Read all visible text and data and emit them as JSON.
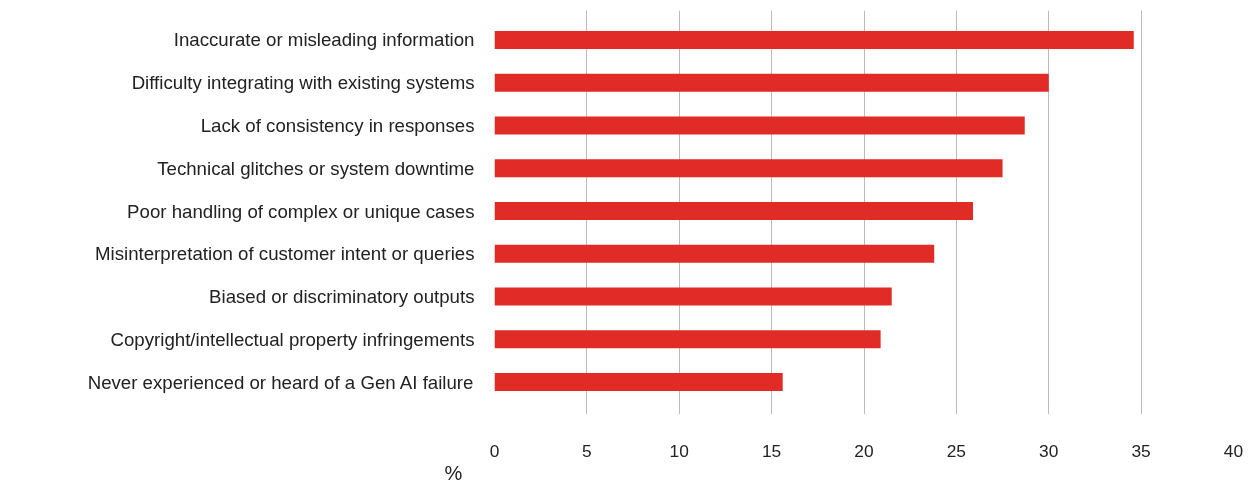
{
  "chart_data": {
    "type": "bar",
    "orientation": "horizontal",
    "xlabel": "%",
    "categories": [
      "Inaccurate or misleading information",
      "Difficulty integrating with existing systems",
      "Lack of consistency in responses",
      "Technical glitches or system downtime",
      "Poor handling of complex or unique cases",
      "Misinterpretation of customer intent or queries",
      "Biased or discriminatory outputs",
      "Copyright/intellectual property infringements",
      "Never experienced or heard of a Gen AI failure"
    ],
    "values": [
      34.6,
      30.0,
      28.7,
      27.5,
      25.9,
      23.8,
      21.5,
      20.9,
      15.6
    ],
    "color": "#e02b27",
    "xlim": [
      0,
      40
    ],
    "xticks": [
      0,
      5,
      10,
      15,
      20,
      25,
      30,
      35,
      40
    ],
    "grid": "x"
  }
}
